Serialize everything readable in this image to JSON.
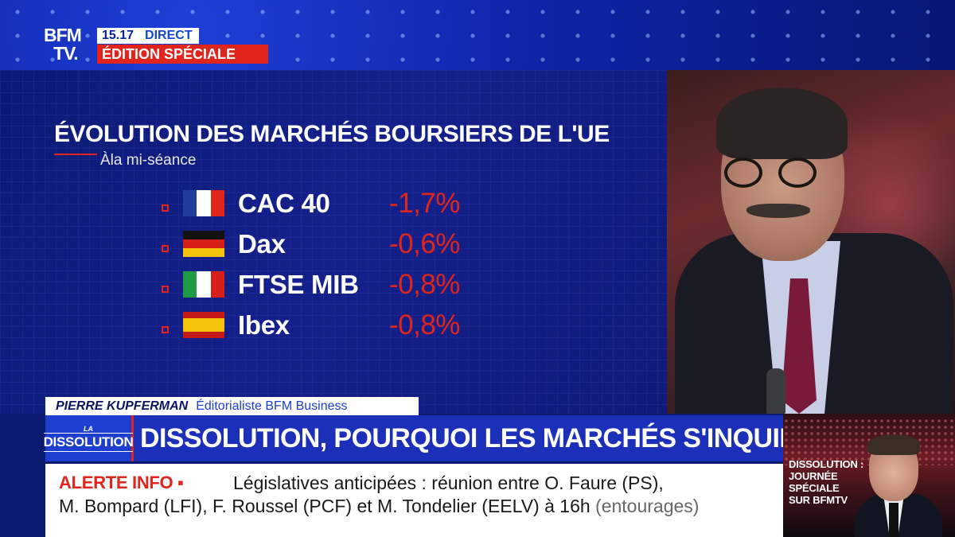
{
  "header": {
    "logo_line1": "BFM",
    "logo_line2": "TV.",
    "time": "15.17",
    "live": "DIRECT",
    "edition": "ÉDITION SPÉCIALE"
  },
  "chart": {
    "title": "ÉVOLUTION DES MARCHÉS BOURSIERS DE L'UE",
    "subtitle": "Àla mi-séance",
    "rows": [
      {
        "name": "CAC 40",
        "value": "-1,7%",
        "flag": "france-flag"
      },
      {
        "name": "Dax",
        "value": "-0,6%",
        "flag": "germany-flag"
      },
      {
        "name": "FTSE MIB",
        "value": "-0,8%",
        "flag": "italy-flag"
      },
      {
        "name": "Ibex",
        "value": "-0,8%",
        "flag": "spain-flag"
      }
    ]
  },
  "lower_third": {
    "name": "PIERRE KUPFERMAN",
    "role": "Éditorialiste BFM Business",
    "tag_top": "LA",
    "tag_main": "DISSOLUTION",
    "headline": "DISSOLUTION, POURQUOI LES MARCHÉS S'INQUIÈTENT"
  },
  "alert": {
    "label": "ALERTE INFO ▪",
    "line1": "Législatives anticipées : réunion entre O. Faure (PS),",
    "line2": "M. Bompard (LFI), F. Roussel (PCF) et M. Tondelier (EELV) à 16h",
    "line2_extra": "(entourages)"
  },
  "thumbnail": {
    "line1": "DISSOLUTION :",
    "line2": "JOURNÉE",
    "line3": "SPÉCIALE",
    "line4": "SUR BFMTV"
  },
  "colors": {
    "brand_red": "#e0251d",
    "brand_blue": "#1c2fb8",
    "panel_blue": "#0c1a74"
  }
}
